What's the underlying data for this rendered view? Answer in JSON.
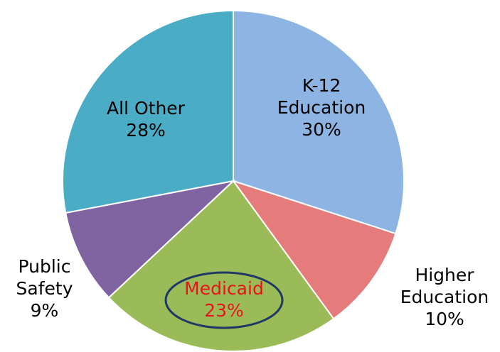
{
  "chart_data": {
    "type": "pie",
    "categories": [
      "K-12 Education",
      "Higher Education",
      "Medicaid",
      "Public Safety",
      "All Other"
    ],
    "values": [
      30,
      10,
      23,
      9,
      28
    ],
    "value_labels": [
      "30%",
      "10%",
      "23%",
      "9%",
      "28%"
    ],
    "colors": [
      "#8db4e2",
      "#e57b7b",
      "#9bbb59",
      "#8064a2",
      "#4bacc6"
    ]
  }
}
